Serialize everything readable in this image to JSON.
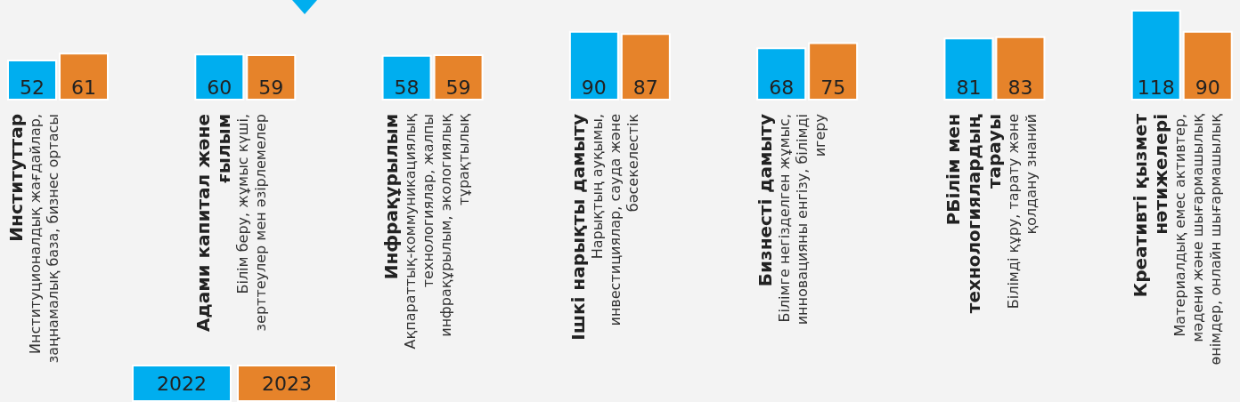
{
  "chart_data": {
    "type": "bar",
    "categories": [
      "Институттар",
      "Адами капитал және ғылым",
      "Инфрақұрылым",
      "Ішкі нарықты дамыту",
      "Бизнесті дамыту",
      "РБілім мен технологиялардың тарауы",
      "Креативті қызмет нәтижелері"
    ],
    "series": [
      {
        "name": "2022",
        "color": "#00aeef",
        "values": [
          52,
          60,
          58,
          90,
          68,
          81,
          118
        ]
      },
      {
        "name": "2023",
        "color": "#e6832a",
        "values": [
          61,
          59,
          59,
          87,
          75,
          83,
          90
        ]
      }
    ],
    "annotations": [
      "Институционалдық жағдайлар, заңнамалық база, бизнес ортасы",
      "Білім беру, жұмыс күші, зерттеулер мен әзірлемелер",
      "Ақпараттық-коммуникациялық технологиялар, жалпы инфрақұрылым, экологиялық тұрақтылық",
      "Нарықтың ауқымы, инвестициялар, сауда және бәсекелестік",
      "Білімге негізделген жұмыс, инновацияны енгізу, білімді игеру",
      "Білімді құру, тарату және қолдану знаний",
      "Материалдық емес активтер, мәдени және шығармашылық өнімдер, онлайн шығармашылық"
    ],
    "data_labels": true,
    "legend": "bottom left"
  }
}
